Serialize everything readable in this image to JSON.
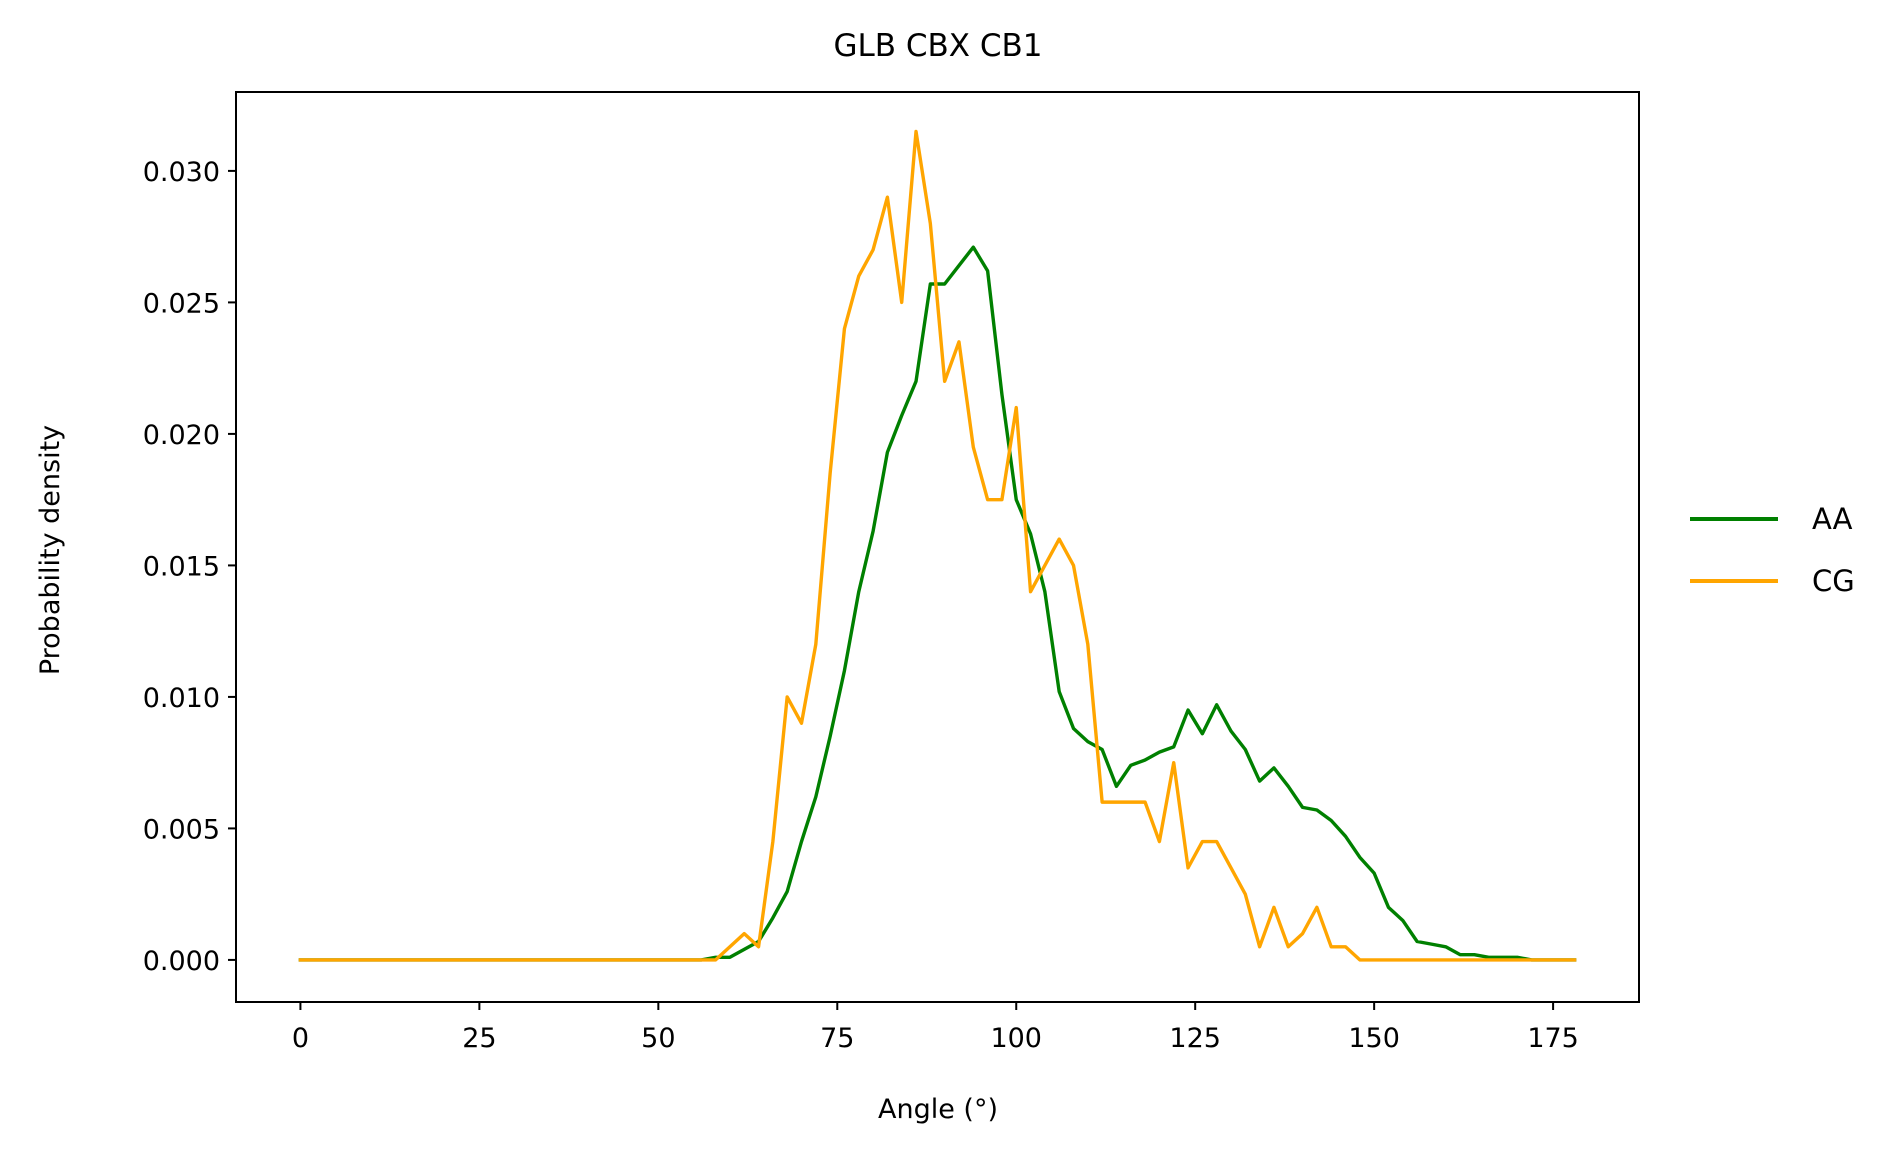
{
  "chart_data": {
    "type": "line",
    "title": "GLB CBX CB1",
    "xlabel": "Angle (°)",
    "ylabel": "Probability density",
    "xlim": [
      -9,
      187
    ],
    "ylim": [
      -0.0016,
      0.033
    ],
    "xticks": [
      0,
      25,
      50,
      75,
      100,
      125,
      150,
      175
    ],
    "xtick_labels": [
      "0",
      "25",
      "50",
      "75",
      "100",
      "125",
      "150",
      "175"
    ],
    "yticks": [
      0.0,
      0.005,
      0.01,
      0.015,
      0.02,
      0.025,
      0.03
    ],
    "ytick_labels": [
      "0.000",
      "0.005",
      "0.010",
      "0.015",
      "0.020",
      "0.025",
      "0.030"
    ],
    "grid": false,
    "legend_position": "outside-right",
    "series": [
      {
        "name": "AA",
        "color": "#008000",
        "x": [
          0,
          56,
          58,
          60,
          62,
          64,
          66,
          68,
          70,
          72,
          74,
          76,
          78,
          80,
          82,
          84,
          86,
          88,
          90,
          92,
          94,
          96,
          98,
          100,
          102,
          104,
          106,
          108,
          110,
          112,
          114,
          116,
          118,
          120,
          122,
          124,
          126,
          128,
          130,
          132,
          134,
          136,
          138,
          140,
          142,
          144,
          146,
          148,
          150,
          152,
          154,
          156,
          158,
          160,
          162,
          164,
          166,
          168,
          170,
          172,
          174,
          176,
          178
        ],
        "y": [
          0.0,
          0.0,
          0.0001,
          0.0001,
          0.0004,
          0.0007,
          0.0016,
          0.0026,
          0.0045,
          0.0062,
          0.0085,
          0.011,
          0.014,
          0.0163,
          0.0193,
          0.0207,
          0.022,
          0.0257,
          0.0257,
          0.0264,
          0.0271,
          0.0262,
          0.0215,
          0.0175,
          0.0162,
          0.014,
          0.0102,
          0.0088,
          0.0083,
          0.008,
          0.0066,
          0.0074,
          0.0076,
          0.0079,
          0.0081,
          0.0095,
          0.0086,
          0.0097,
          0.0087,
          0.008,
          0.0068,
          0.0073,
          0.0066,
          0.0058,
          0.0057,
          0.0053,
          0.0047,
          0.0039,
          0.0033,
          0.002,
          0.0015,
          0.0007,
          0.0006,
          0.0005,
          0.0002,
          0.0002,
          0.0001,
          0.0001,
          0.0001,
          0.0,
          0.0,
          0.0,
          0.0
        ]
      },
      {
        "name": "CG",
        "color": "#FFA500",
        "x": [
          0,
          58,
          60,
          62,
          64,
          66,
          68,
          70,
          72,
          74,
          76,
          78,
          80,
          82,
          84,
          86,
          88,
          90,
          92,
          94,
          96,
          98,
          100,
          102,
          104,
          106,
          108,
          110,
          112,
          114,
          116,
          118,
          120,
          122,
          124,
          126,
          128,
          130,
          132,
          134,
          136,
          138,
          140,
          142,
          144,
          146,
          148,
          150,
          178
        ],
        "y": [
          0.0,
          0.0,
          0.0005,
          0.001,
          0.0005,
          0.0045,
          0.01,
          0.009,
          0.012,
          0.0185,
          0.024,
          0.026,
          0.027,
          0.029,
          0.025,
          0.0315,
          0.028,
          0.022,
          0.0235,
          0.0195,
          0.0175,
          0.0175,
          0.021,
          0.014,
          0.015,
          0.016,
          0.015,
          0.012,
          0.006,
          0.006,
          0.006,
          0.006,
          0.0045,
          0.0075,
          0.0035,
          0.0045,
          0.0045,
          0.0035,
          0.0025,
          0.0005,
          0.002,
          0.0005,
          0.001,
          0.002,
          0.0005,
          0.0005,
          0.0,
          0.0,
          0.0
        ]
      }
    ]
  }
}
